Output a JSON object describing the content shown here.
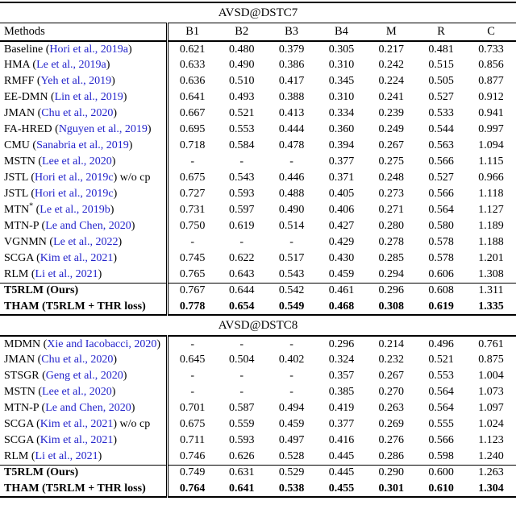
{
  "paper_table": {
    "citation_color": "#2323cb",
    "columns": [
      "Methods",
      "B1",
      "B2",
      "B3",
      "B4",
      "M",
      "R",
      "C"
    ],
    "sections": [
      {
        "title": "AVSD@DSTC7",
        "rows": [
          {
            "name": "Baseline",
            "citation": "Hori et al., 2019a",
            "suffix": "",
            "bold": "none",
            "ours": false,
            "values": [
              "0.621",
              "0.480",
              "0.379",
              "0.305",
              "0.217",
              "0.481",
              "0.733"
            ]
          },
          {
            "name": "HMA",
            "citation": "Le et al., 2019a",
            "suffix": "",
            "bold": "none",
            "ours": false,
            "values": [
              "0.633",
              "0.490",
              "0.386",
              "0.310",
              "0.242",
              "0.515",
              "0.856"
            ]
          },
          {
            "name": "RMFF",
            "citation": "Yeh et al., 2019",
            "suffix": "",
            "bold": "none",
            "ours": false,
            "values": [
              "0.636",
              "0.510",
              "0.417",
              "0.345",
              "0.224",
              "0.505",
              "0.877"
            ]
          },
          {
            "name": "EE-DMN",
            "citation": "Lin et al., 2019",
            "suffix": "",
            "bold": "none",
            "ours": false,
            "values": [
              "0.641",
              "0.493",
              "0.388",
              "0.310",
              "0.241",
              "0.527",
              "0.912"
            ]
          },
          {
            "name": "JMAN",
            "citation": "Chu et al., 2020",
            "suffix": "",
            "bold": "none",
            "ours": false,
            "values": [
              "0.667",
              "0.521",
              "0.413",
              "0.334",
              "0.239",
              "0.533",
              "0.941"
            ]
          },
          {
            "name": "FA-HRED",
            "citation": "Nguyen et al., 2019",
            "suffix": "",
            "bold": "none",
            "ours": false,
            "values": [
              "0.695",
              "0.553",
              "0.444",
              "0.360",
              "0.249",
              "0.544",
              "0.997"
            ]
          },
          {
            "name": "CMU",
            "citation": "Sanabria et al., 2019",
            "suffix": "",
            "bold": "none",
            "ours": false,
            "values": [
              "0.718",
              "0.584",
              "0.478",
              "0.394",
              "0.267",
              "0.563",
              "1.094"
            ]
          },
          {
            "name": "MSTN",
            "citation": "Lee et al., 2020",
            "suffix": "",
            "bold": "none",
            "ours": false,
            "values": [
              "-",
              "-",
              "-",
              "0.377",
              "0.275",
              "0.566",
              "1.115"
            ]
          },
          {
            "name": "JSTL",
            "citation": "Hori et al., 2019c",
            "suffix": " w/o cp",
            "bold": "none",
            "ours": false,
            "values": [
              "0.675",
              "0.543",
              "0.446",
              "0.371",
              "0.248",
              "0.527",
              "0.966"
            ]
          },
          {
            "name": "JSTL",
            "citation": "Hori et al., 2019c",
            "suffix": "",
            "bold": "none",
            "ours": false,
            "values": [
              "0.727",
              "0.593",
              "0.488",
              "0.405",
              "0.273",
              "0.566",
              "1.118"
            ]
          },
          {
            "name": "MTN*",
            "citation": "Le et al., 2019b",
            "suffix": "",
            "bold": "none",
            "ours": false,
            "values": [
              "0.731",
              "0.597",
              "0.490",
              "0.406",
              "0.271",
              "0.564",
              "1.127"
            ]
          },
          {
            "name": "MTN-P",
            "citation": "Le and Chen, 2020",
            "suffix": "",
            "bold": "none",
            "ours": false,
            "values": [
              "0.750",
              "0.619",
              "0.514",
              "0.427",
              "0.280",
              "0.580",
              "1.189"
            ]
          },
          {
            "name": "VGNMN",
            "citation": "Le et al., 2022",
            "suffix": "",
            "bold": "none",
            "ours": false,
            "values": [
              "-",
              "-",
              "-",
              "0.429",
              "0.278",
              "0.578",
              "1.188"
            ]
          },
          {
            "name": "SCGA",
            "citation": "Kim et al., 2021",
            "suffix": "",
            "bold": "none",
            "ours": false,
            "values": [
              "0.745",
              "0.622",
              "0.517",
              "0.430",
              "0.285",
              "0.578",
              "1.201"
            ]
          },
          {
            "name": "RLM",
            "citation": "Li et al., 2021",
            "suffix": "",
            "bold": "none",
            "ours": false,
            "values": [
              "0.765",
              "0.643",
              "0.543",
              "0.459",
              "0.294",
              "0.606",
              "1.308"
            ]
          },
          {
            "name": "T5RLM (Ours)",
            "citation": null,
            "suffix": "",
            "bold": "name",
            "ours": true,
            "values": [
              "0.767",
              "0.644",
              "0.542",
              "0.461",
              "0.296",
              "0.608",
              "1.311"
            ]
          },
          {
            "name": "THAM (T5RLM + THR loss)",
            "citation": null,
            "suffix": "",
            "bold": "all",
            "ours": true,
            "values": [
              "0.778",
              "0.654",
              "0.549",
              "0.468",
              "0.308",
              "0.619",
              "1.335"
            ]
          }
        ]
      },
      {
        "title": "AVSD@DSTC8",
        "rows": [
          {
            "name": "MDMN",
            "citation": "Xie and Iacobacci, 2020",
            "suffix": "",
            "bold": "none",
            "ours": false,
            "values": [
              "-",
              "-",
              "-",
              "0.296",
              "0.214",
              "0.496",
              "0.761"
            ]
          },
          {
            "name": "JMAN",
            "citation": "Chu et al., 2020",
            "suffix": "",
            "bold": "none",
            "ours": false,
            "values": [
              "0.645",
              "0.504",
              "0.402",
              "0.324",
              "0.232",
              "0.521",
              "0.875"
            ]
          },
          {
            "name": "STSGR",
            "citation": "Geng et al., 2020",
            "suffix": "",
            "bold": "none",
            "ours": false,
            "values": [
              "-",
              "-",
              "-",
              "0.357",
              "0.267",
              "0.553",
              "1.004"
            ]
          },
          {
            "name": "MSTN",
            "citation": "Lee et al., 2020",
            "suffix": "",
            "bold": "none",
            "ours": false,
            "values": [
              "-",
              "-",
              "-",
              "0.385",
              "0.270",
              "0.564",
              "1.073"
            ]
          },
          {
            "name": "MTN-P",
            "citation": "Le and Chen, 2020",
            "suffix": "",
            "bold": "none",
            "ours": false,
            "values": [
              "0.701",
              "0.587",
              "0.494",
              "0.419",
              "0.263",
              "0.564",
              "1.097"
            ]
          },
          {
            "name": "SCGA",
            "citation": "Kim et al., 2021",
            "suffix": " w/o cp",
            "bold": "none",
            "ours": false,
            "values": [
              "0.675",
              "0.559",
              "0.459",
              "0.377",
              "0.269",
              "0.555",
              "1.024"
            ]
          },
          {
            "name": "SCGA",
            "citation": "Kim et al., 2021",
            "suffix": "",
            "bold": "none",
            "ours": false,
            "values": [
              "0.711",
              "0.593",
              "0.497",
              "0.416",
              "0.276",
              "0.566",
              "1.123"
            ]
          },
          {
            "name": "RLM",
            "citation": "Li et al., 2021",
            "suffix": "",
            "bold": "none",
            "ours": false,
            "values": [
              "0.746",
              "0.626",
              "0.528",
              "0.445",
              "0.286",
              "0.598",
              "1.240"
            ]
          },
          {
            "name": "T5RLM (Ours)",
            "citation": null,
            "suffix": "",
            "bold": "name",
            "ours": true,
            "values": [
              "0.749",
              "0.631",
              "0.529",
              "0.445",
              "0.290",
              "0.600",
              "1.263"
            ]
          },
          {
            "name": "THAM (T5RLM + THR loss)",
            "citation": null,
            "suffix": "",
            "bold": "all",
            "ours": true,
            "values": [
              "0.764",
              "0.641",
              "0.538",
              "0.455",
              "0.301",
              "0.610",
              "1.304"
            ]
          }
        ]
      }
    ]
  }
}
